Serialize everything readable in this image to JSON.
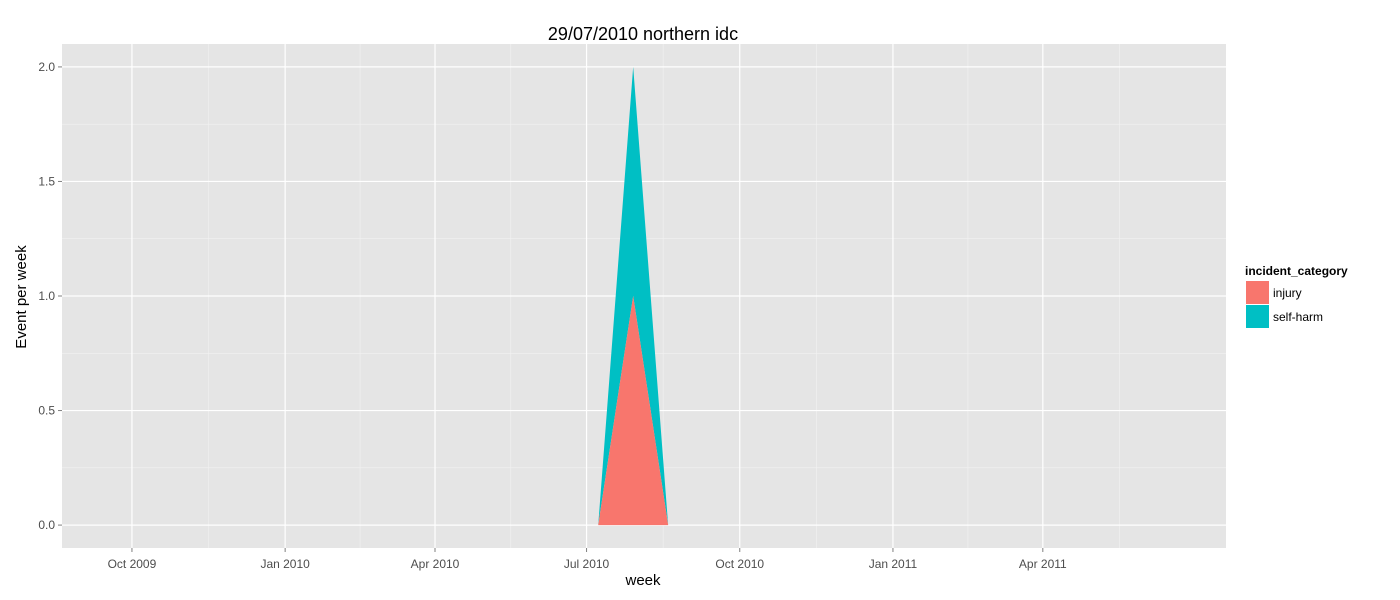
{
  "chart_data": {
    "type": "area",
    "stacked": true,
    "title": "29/07/2010 northern idc",
    "xlabel": "week",
    "ylabel": "Event per week",
    "x_type": "date",
    "xlim": [
      "2009-08-20",
      "2011-07-20"
    ],
    "ylim": [
      -0.1,
      2.1
    ],
    "x_ticks": [
      {
        "date": "2009-10-01",
        "label": "Oct 2009"
      },
      {
        "date": "2010-01-01",
        "label": "Jan 2010"
      },
      {
        "date": "2010-04-01",
        "label": "Apr 2010"
      },
      {
        "date": "2010-07-01",
        "label": "Jul 2010"
      },
      {
        "date": "2010-10-01",
        "label": "Oct 2010"
      },
      {
        "date": "2011-01-01",
        "label": "Jan 2011"
      },
      {
        "date": "2011-04-01",
        "label": "Apr 2011"
      }
    ],
    "y_ticks": [
      {
        "value": 0.0,
        "label": "0.0"
      },
      {
        "value": 0.5,
        "label": "0.5"
      },
      {
        "value": 1.0,
        "label": "1.0"
      },
      {
        "value": 1.5,
        "label": "1.5"
      },
      {
        "value": 2.0,
        "label": "2.0"
      }
    ],
    "x": [
      "2010-07-08",
      "2010-07-29",
      "2010-08-19"
    ],
    "series": [
      {
        "name": "injury",
        "color": "#F8766D",
        "values": [
          0,
          1,
          0
        ]
      },
      {
        "name": "self-harm",
        "color": "#00BFC4",
        "values": [
          0,
          1,
          0
        ]
      }
    ],
    "legend": {
      "title": "incident_category",
      "position": "right"
    },
    "grid": true,
    "panel_background": "#E5E5E5",
    "grid_color": "#FFFFFF"
  }
}
